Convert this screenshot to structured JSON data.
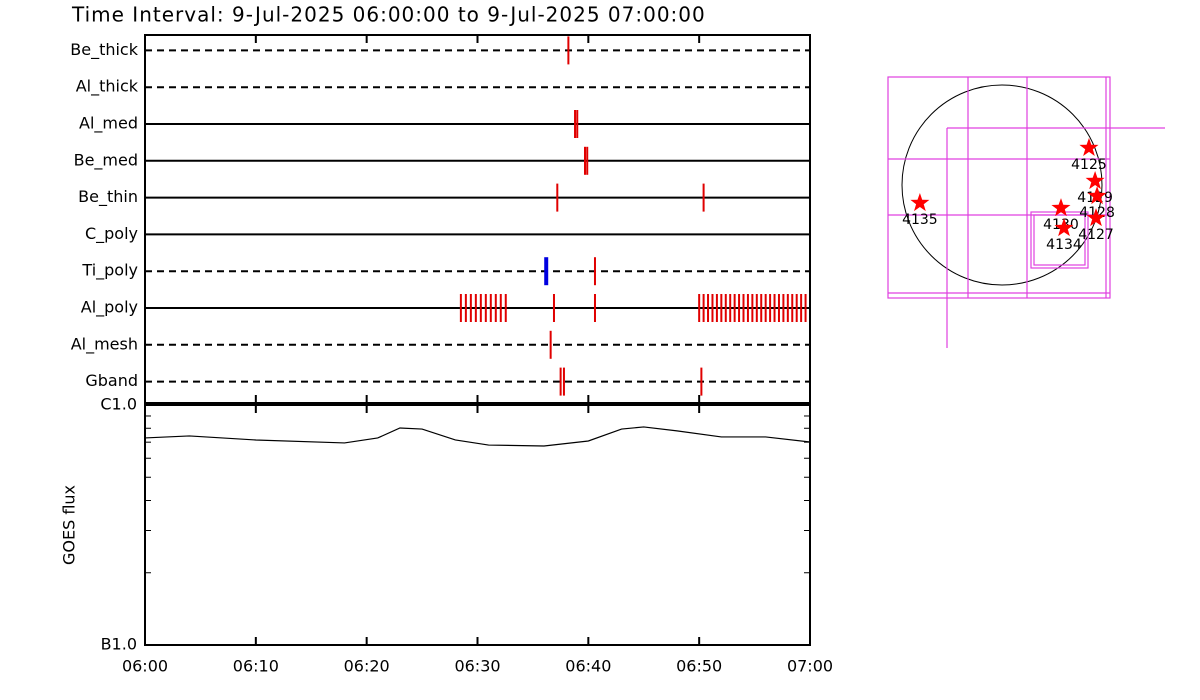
{
  "chart_data": [
    {
      "type": "timeline",
      "title": "Time Interval:  9-Jul-2025 06:00:00 to  9-Jul-2025 07:00:00",
      "xlim": [
        0,
        60
      ],
      "xticks": [
        {
          "value": 0,
          "label": "06:00"
        },
        {
          "value": 10,
          "label": "06:10"
        },
        {
          "value": 20,
          "label": "06:20"
        },
        {
          "value": 30,
          "label": "06:30"
        },
        {
          "value": 40,
          "label": "06:40"
        },
        {
          "value": 50,
          "label": "06:50"
        },
        {
          "value": 60,
          "label": "07:00"
        }
      ],
      "channels": [
        {
          "name": "Be_thick",
          "dashed": true,
          "events": [
            {
              "color": "#e00000",
              "x": [
                38.2
              ]
            }
          ]
        },
        {
          "name": "Al_thick",
          "dashed": true,
          "events": []
        },
        {
          "name": "Al_med",
          "dashed": false,
          "events": [
            {
              "color": "#e00000",
              "x": [
                38.8,
                39.0
              ]
            }
          ]
        },
        {
          "name": "Be_med",
          "dashed": false,
          "events": [
            {
              "color": "#e00000",
              "x": [
                39.7,
                39.9
              ]
            }
          ]
        },
        {
          "name": "Be_thin",
          "dashed": false,
          "events": [
            {
              "color": "#e00000",
              "x": [
                37.2,
                50.4
              ]
            }
          ]
        },
        {
          "name": "C_poly",
          "dashed": false,
          "events": []
        },
        {
          "name": "Ti_poly",
          "dashed": true,
          "events": [
            {
              "color": "#0000e0",
              "x": [
                36.2
              ]
            },
            {
              "color": "#e00000",
              "x": [
                40.6
              ]
            }
          ]
        },
        {
          "name": "Al_poly",
          "dashed": false,
          "events": [
            {
              "color": "#e00000",
              "x": [
                28.5,
                28.95,
                29.4,
                29.85,
                30.3,
                30.75,
                31.2,
                31.65,
                32.1,
                32.55,
                36.9,
                40.6,
                50.0,
                50.4,
                50.8,
                51.2,
                51.6,
                52.0,
                52.4,
                52.8,
                53.2,
                53.6,
                54.0,
                54.4,
                54.8,
                55.2,
                55.6,
                56.0,
                56.4,
                56.8,
                57.2,
                57.6,
                58.0,
                58.4,
                58.8,
                59.2,
                59.6
              ]
            }
          ]
        },
        {
          "name": "Al_mesh",
          "dashed": true,
          "events": [
            {
              "color": "#e00000",
              "x": [
                36.6
              ]
            }
          ]
        },
        {
          "name": "Gband",
          "dashed": true,
          "events": [
            {
              "color": "#e00000",
              "x": [
                37.5,
                37.8,
                50.2
              ]
            }
          ]
        }
      ]
    },
    {
      "type": "line",
      "y_label": "GOES flux",
      "log_scale": true,
      "xlim": [
        0,
        60
      ],
      "ylim": [
        1e-07,
        1e-06
      ],
      "yticks": [
        {
          "value": 1e-07,
          "label": "B1.0"
        },
        {
          "value": 1e-06,
          "label": "C1.0"
        }
      ],
      "yminor": [
        2e-07,
        3e-07,
        4e-07,
        5e-07,
        6e-07,
        7e-07,
        8e-07,
        9e-07
      ],
      "x": [
        0,
        4,
        10,
        18,
        21,
        23,
        25,
        28,
        31,
        36,
        40,
        43,
        45,
        48,
        52,
        56,
        60
      ],
      "series": [
        {
          "color": "#000000",
          "values": [
            7.29e-07,
            7.43e-07,
            7.15e-07,
            6.95e-07,
            7.29e-07,
            8.02e-07,
            7.94e-07,
            7.15e-07,
            6.81e-07,
            6.75e-07,
            7.08e-07,
            7.94e-07,
            8.1e-07,
            7.8e-07,
            7.36e-07,
            7.36e-07,
            7.01e-07
          ]
        }
      ]
    },
    {
      "type": "scatter",
      "color": "#ff0000",
      "xlim": [
        -1100,
        1100
      ],
      "ylim": [
        -1100,
        1100
      ],
      "labels": [
        "4135",
        "4125",
        "4129",
        "4128",
        "4130",
        "4134",
        "4127"
      ],
      "x": [
        -780,
        826,
        884,
        903,
        560,
        589,
        893
      ],
      "y": [
        -171,
        352,
        38,
        -105,
        -219,
        -409,
        -314
      ]
    }
  ]
}
